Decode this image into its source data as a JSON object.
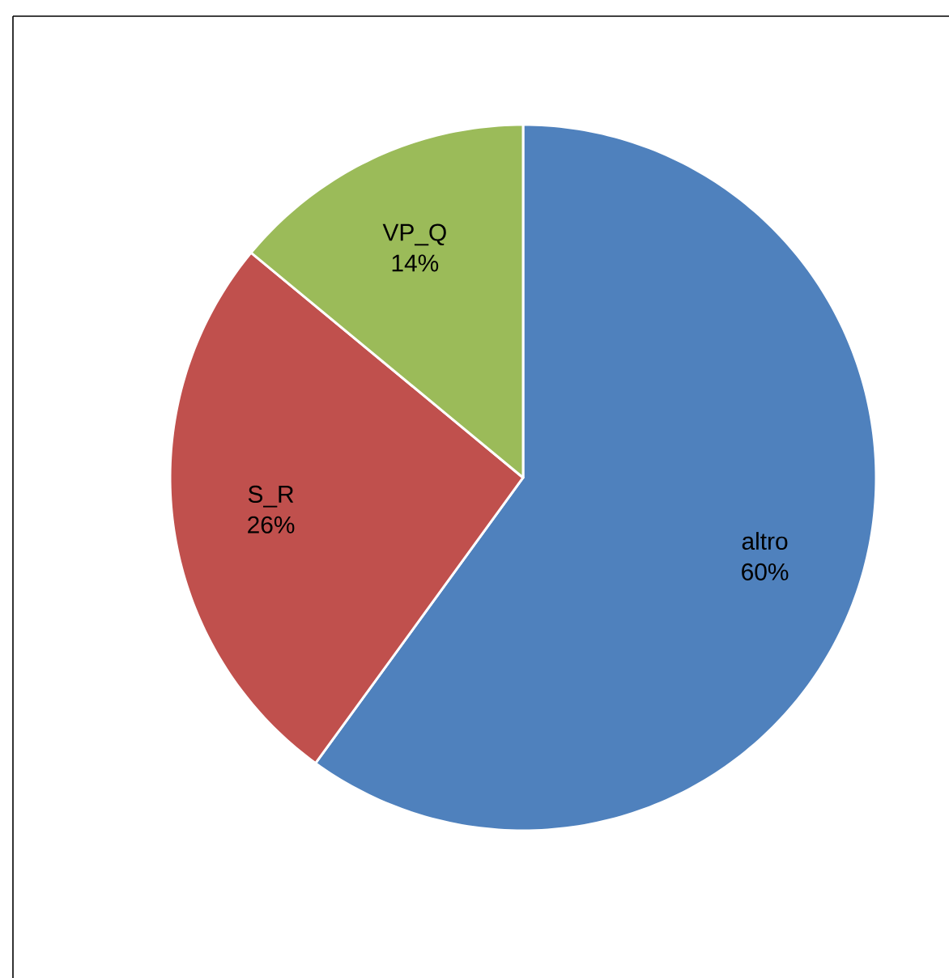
{
  "chart_data": {
    "type": "pie",
    "categories": [
      "altro",
      "S_R",
      "VP_Q"
    ],
    "values": [
      60,
      26,
      14
    ],
    "value_labels": [
      "60%",
      "26%",
      "14%"
    ],
    "colors": [
      "#4f81bd",
      "#c0504d",
      "#9bbb59"
    ]
  }
}
